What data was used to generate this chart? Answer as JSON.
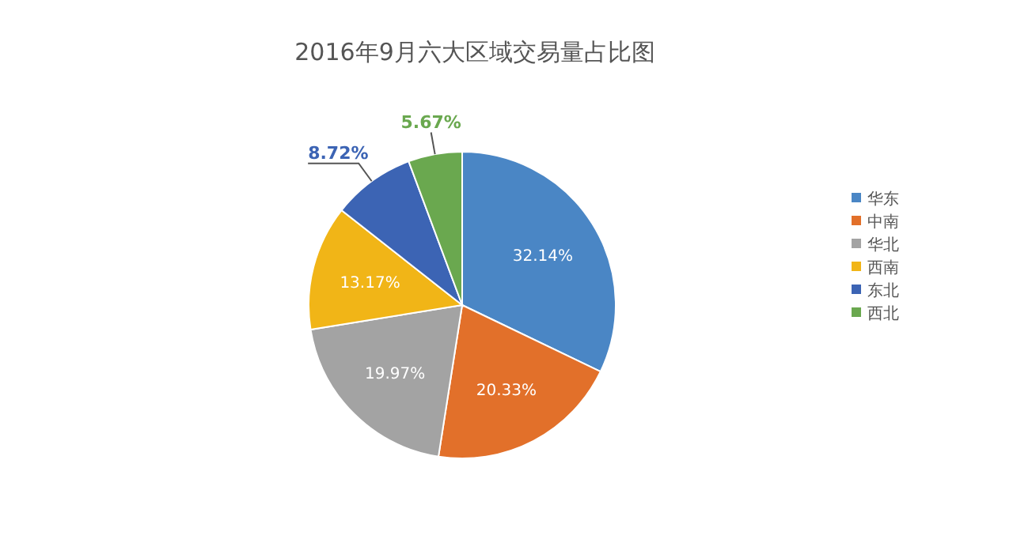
{
  "chart_data": {
    "type": "pie",
    "title": "2016年9月六大区域交易量占比图",
    "categories": [
      "华东",
      "中南",
      "华北",
      "西南",
      "东北",
      "西北"
    ],
    "values": [
      32.14,
      20.33,
      19.97,
      13.17,
      8.72,
      5.67
    ],
    "value_labels": [
      "32.14%",
      "20.33%",
      "19.97%",
      "13.17%",
      "8.72%",
      "5.67%"
    ],
    "colors": [
      "#4a86c5",
      "#e2702a",
      "#a3a3a3",
      "#f1b517",
      "#3c64b4",
      "#6aa84f"
    ],
    "legend": "right"
  }
}
